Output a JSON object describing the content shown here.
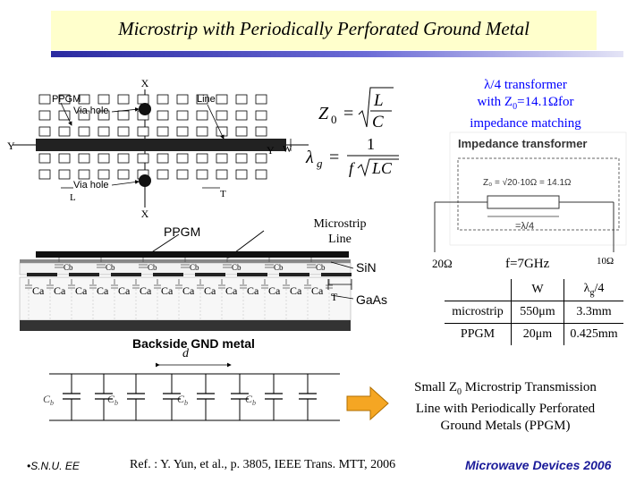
{
  "title": "Microstrip with Periodically Perforated Ground Metal",
  "transformer_note": {
    "line1": "λ/4 transformer",
    "line2_prefix": "with Z",
    "line2_sub": "0",
    "line2_suffix": "=14.1Ωfor",
    "line3": "impedance matching"
  },
  "top_figure": {
    "labels": {
      "x_top": "X",
      "x_bottom": "X",
      "y_left": "Y",
      "y_right": "Y",
      "ppgm": "PPGM",
      "via_hole_top": "Via hole",
      "via_hole_bottom": "Via hole",
      "line_top": "Line",
      "w": "W",
      "l": "L",
      "t": "T"
    },
    "equations": {
      "z0_lhs": "Z",
      "z0_sub": "0",
      "z0_num": "L",
      "z0_den": "C",
      "lg_lhs": "λ",
      "lg_sub": "g",
      "lg_num": "1",
      "lg_den": "f",
      "lg_den_rad": "LC"
    }
  },
  "impedance_transformer": {
    "heading": "Impedance transformer",
    "formula": "Z₀ = √20·10Ω = 14.1Ω",
    "quarter": "=λ/4"
  },
  "microstrip_label": "Microstrip Line",
  "cross_section": {
    "ppgm": "PPGM",
    "sin": "SiN",
    "gaas": "GaAs",
    "gnd": "Backside GND metal",
    "cb": "Cb",
    "ca": "Ca",
    "t": "T",
    "d": "d"
  },
  "resistance_left": "20Ω",
  "resistance_right": "10Ω",
  "frequency": "f=7GHz",
  "spec_table": {
    "header": [
      "",
      "W",
      "λg/4"
    ],
    "rows": [
      [
        "microstrip",
        "550μm",
        "3.3mm"
      ],
      [
        "PPGM",
        "20μm",
        "0.425mm"
      ]
    ]
  },
  "equivalent_circuit": {
    "cb": "C",
    "cb_sub": "b"
  },
  "arrow_icon": "right-arrow",
  "summary": {
    "line1_prefix": "Small Z",
    "line1_sub": "0",
    "line1_suffix": " Microstrip Transmission",
    "line2": "Line with Periodically Perforated",
    "line3": "Ground Metals (PPGM)"
  },
  "footer_left": "•S.N.U. EE",
  "reference": "Ref. : Y. Yun, et al., p. 3805, IEEE Trans. MTT, 2006",
  "course": "Microwave Devices 2006",
  "colors": {
    "title_bg": "#ffffcc",
    "arrow": "#f5a623",
    "course_text": "#1a1a99",
    "blue_note": "#0000ff"
  }
}
